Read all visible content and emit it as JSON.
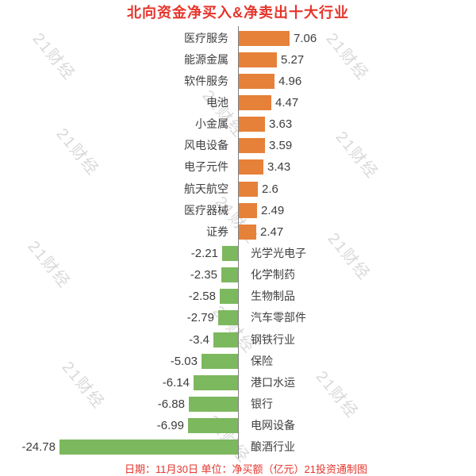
{
  "title": "北向资金净买入&净卖出十大行业",
  "footer": "日期：11月30日 单位：净买额（亿元）21投资通制图",
  "watermark": {
    "text": "21财经",
    "color": "#d9d9d9"
  },
  "colors": {
    "positive_bar": "#E6813A",
    "negative_bar": "#7CB85E",
    "title_text": "#E6342B",
    "footer_text": "#E6342B",
    "label_text": "#404040",
    "value_text": "#3D3D3D",
    "axis_line": "#808080",
    "background": "#FFFFFF"
  },
  "chart_data": {
    "type": "bar",
    "orientation": "horizontal",
    "title": "北向资金净买入&净卖出十大行业",
    "xlabel": "",
    "ylabel": "",
    "unit": "亿元",
    "date": "11月30日",
    "source": "21投资通制图",
    "xlim": [
      -24.78,
      7.06
    ],
    "grid": false,
    "legend": false,
    "categories": [
      "医疗服务",
      "能源金属",
      "软件服务",
      "电池",
      "小金属",
      "风电设备",
      "电子元件",
      "航天航空",
      "医疗器械",
      "证券",
      "光学光电子",
      "化学制药",
      "生物制品",
      "汽车零部件",
      "钢铁行业",
      "保险",
      "港口水运",
      "银行",
      "电网设备",
      "酿酒行业"
    ],
    "values": [
      7.06,
      5.27,
      4.96,
      4.47,
      3.63,
      3.59,
      3.43,
      2.6,
      2.49,
      2.47,
      -2.21,
      -2.35,
      -2.58,
      -2.79,
      -3.4,
      -5.03,
      -6.14,
      -6.88,
      -6.99,
      -24.78
    ],
    "value_labels": [
      "7.06",
      "5.27",
      "4.96",
      "4.47",
      "3.63",
      "3.59",
      "3.43",
      "2.6",
      "2.49",
      "2.47",
      "-2.21",
      "-2.35",
      "-2.58",
      "-2.79",
      "-3.4",
      "-5.03",
      "-6.14",
      "-6.88",
      "-6.99",
      "-24.78"
    ]
  }
}
